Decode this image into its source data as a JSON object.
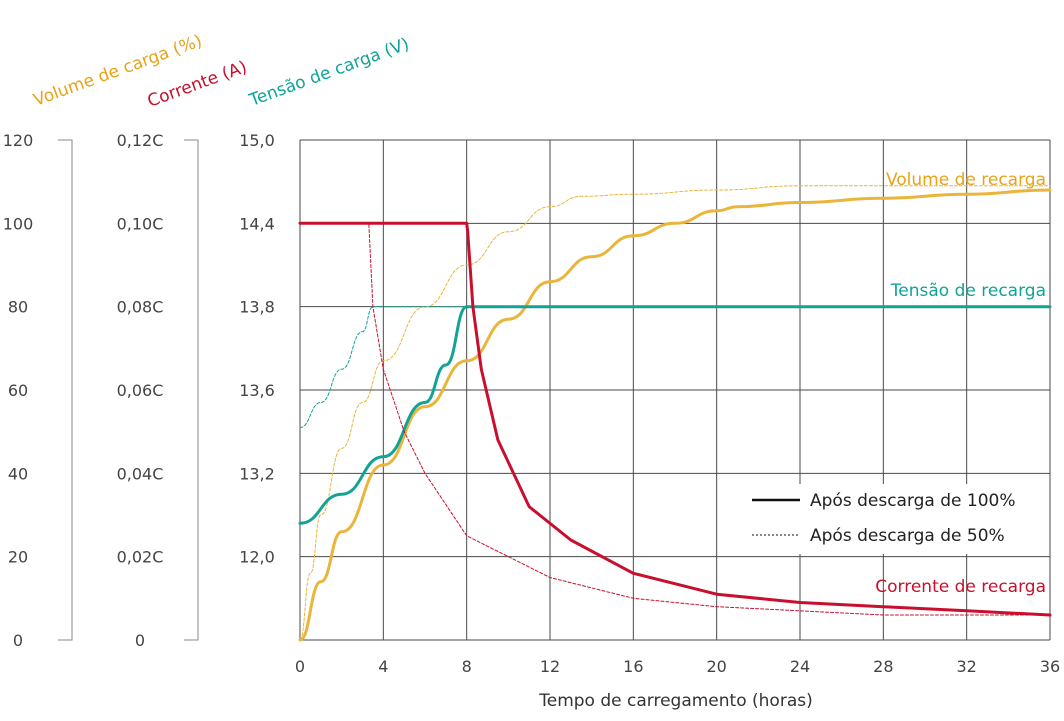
{
  "chart_data": {
    "type": "line",
    "xlabel": "Tempo de carregamento (horas)",
    "x_ticks": [
      "0",
      "4",
      "8",
      "12",
      "16",
      "20",
      "24",
      "28",
      "32",
      "36"
    ],
    "xlim": [
      0,
      36
    ],
    "axes": {
      "volume": {
        "title": "Volume de carga (%)",
        "color": "#e8a317",
        "ticks": [
          "0",
          "20",
          "40",
          "60",
          "80",
          "100",
          "120"
        ],
        "range": [
          0,
          120
        ]
      },
      "current": {
        "title": "Corrente (A)",
        "color": "#c8102e",
        "ticks": [
          "0",
          "0,02C",
          "0,04C",
          "0,06C",
          "0,08C",
          "0,10C",
          "0,12C"
        ],
        "range": [
          0,
          0.12
        ]
      },
      "voltage": {
        "title": "Tensão de carga (V)",
        "color": "#0fa39a",
        "ticks": [
          "12,0",
          "13,2",
          "13,6",
          "13,8",
          "14,4",
          "15,0"
        ]
      }
    },
    "grid": true,
    "series_labels": {
      "volume": "Volume de recarga",
      "voltage": "Tensão de recarga",
      "current": "Corrente de recarga"
    },
    "legend": {
      "position": "lower-right",
      "solid": "Após descarga de 100%",
      "dashed": "Após descarga de 50%"
    },
    "colors": {
      "volume": "#eab53b",
      "voltage": "#12a394",
      "current": "#c8102e",
      "current_drop": "#ee1c25",
      "grid": "#4a4a4a"
    },
    "series": [
      {
        "axis": "volume",
        "style": "solid",
        "x": [
          0,
          1,
          2,
          4,
          6,
          8,
          10,
          12,
          14,
          16,
          18,
          20,
          21,
          24,
          28,
          32,
          36
        ],
        "y": [
          0,
          14,
          26,
          42,
          56,
          67,
          77,
          86,
          92,
          97,
          100,
          103,
          104,
          105,
          106,
          107,
          108
        ]
      },
      {
        "axis": "volume",
        "style": "dashed",
        "x": [
          0,
          0.5,
          1,
          2,
          3,
          4,
          6,
          8,
          10,
          12,
          13.5,
          16,
          20,
          24,
          28,
          32,
          36
        ],
        "y": [
          0,
          16,
          30,
          46,
          57,
          67,
          80,
          90,
          98,
          104,
          106.5,
          107,
          108,
          109,
          109,
          109,
          109
        ]
      },
      {
        "axis": "voltage_scaled",
        "style": "solid",
        "x": [
          0,
          2,
          4,
          6,
          7,
          8,
          36
        ],
        "y": [
          28,
          35,
          44,
          57,
          66,
          80,
          80
        ]
      },
      {
        "axis": "voltage_scaled",
        "style": "dashed",
        "x": [
          0,
          1,
          2,
          3,
          3.5,
          8
        ],
        "y": [
          51,
          57,
          65,
          74,
          80,
          80
        ]
      },
      {
        "axis": "current",
        "style": "solid",
        "x": [
          0,
          8,
          8.05,
          8.3,
          8.7,
          9.5,
          11,
          13,
          16,
          20,
          24,
          28,
          32,
          36
        ],
        "y": [
          0.1,
          0.1,
          0.098,
          0.08,
          0.065,
          0.048,
          0.032,
          0.024,
          0.016,
          0.011,
          0.009,
          0.008,
          0.007,
          0.006
        ]
      },
      {
        "axis": "current",
        "style": "dashed",
        "x": [
          0,
          3.3,
          3.5,
          4,
          5,
          6,
          8,
          12,
          16,
          20,
          24,
          28,
          32,
          36
        ],
        "y": [
          0.1,
          0.1,
          0.08,
          0.065,
          0.05,
          0.04,
          0.025,
          0.015,
          0.01,
          0.008,
          0.007,
          0.006,
          0.006,
          0.006
        ]
      }
    ]
  }
}
